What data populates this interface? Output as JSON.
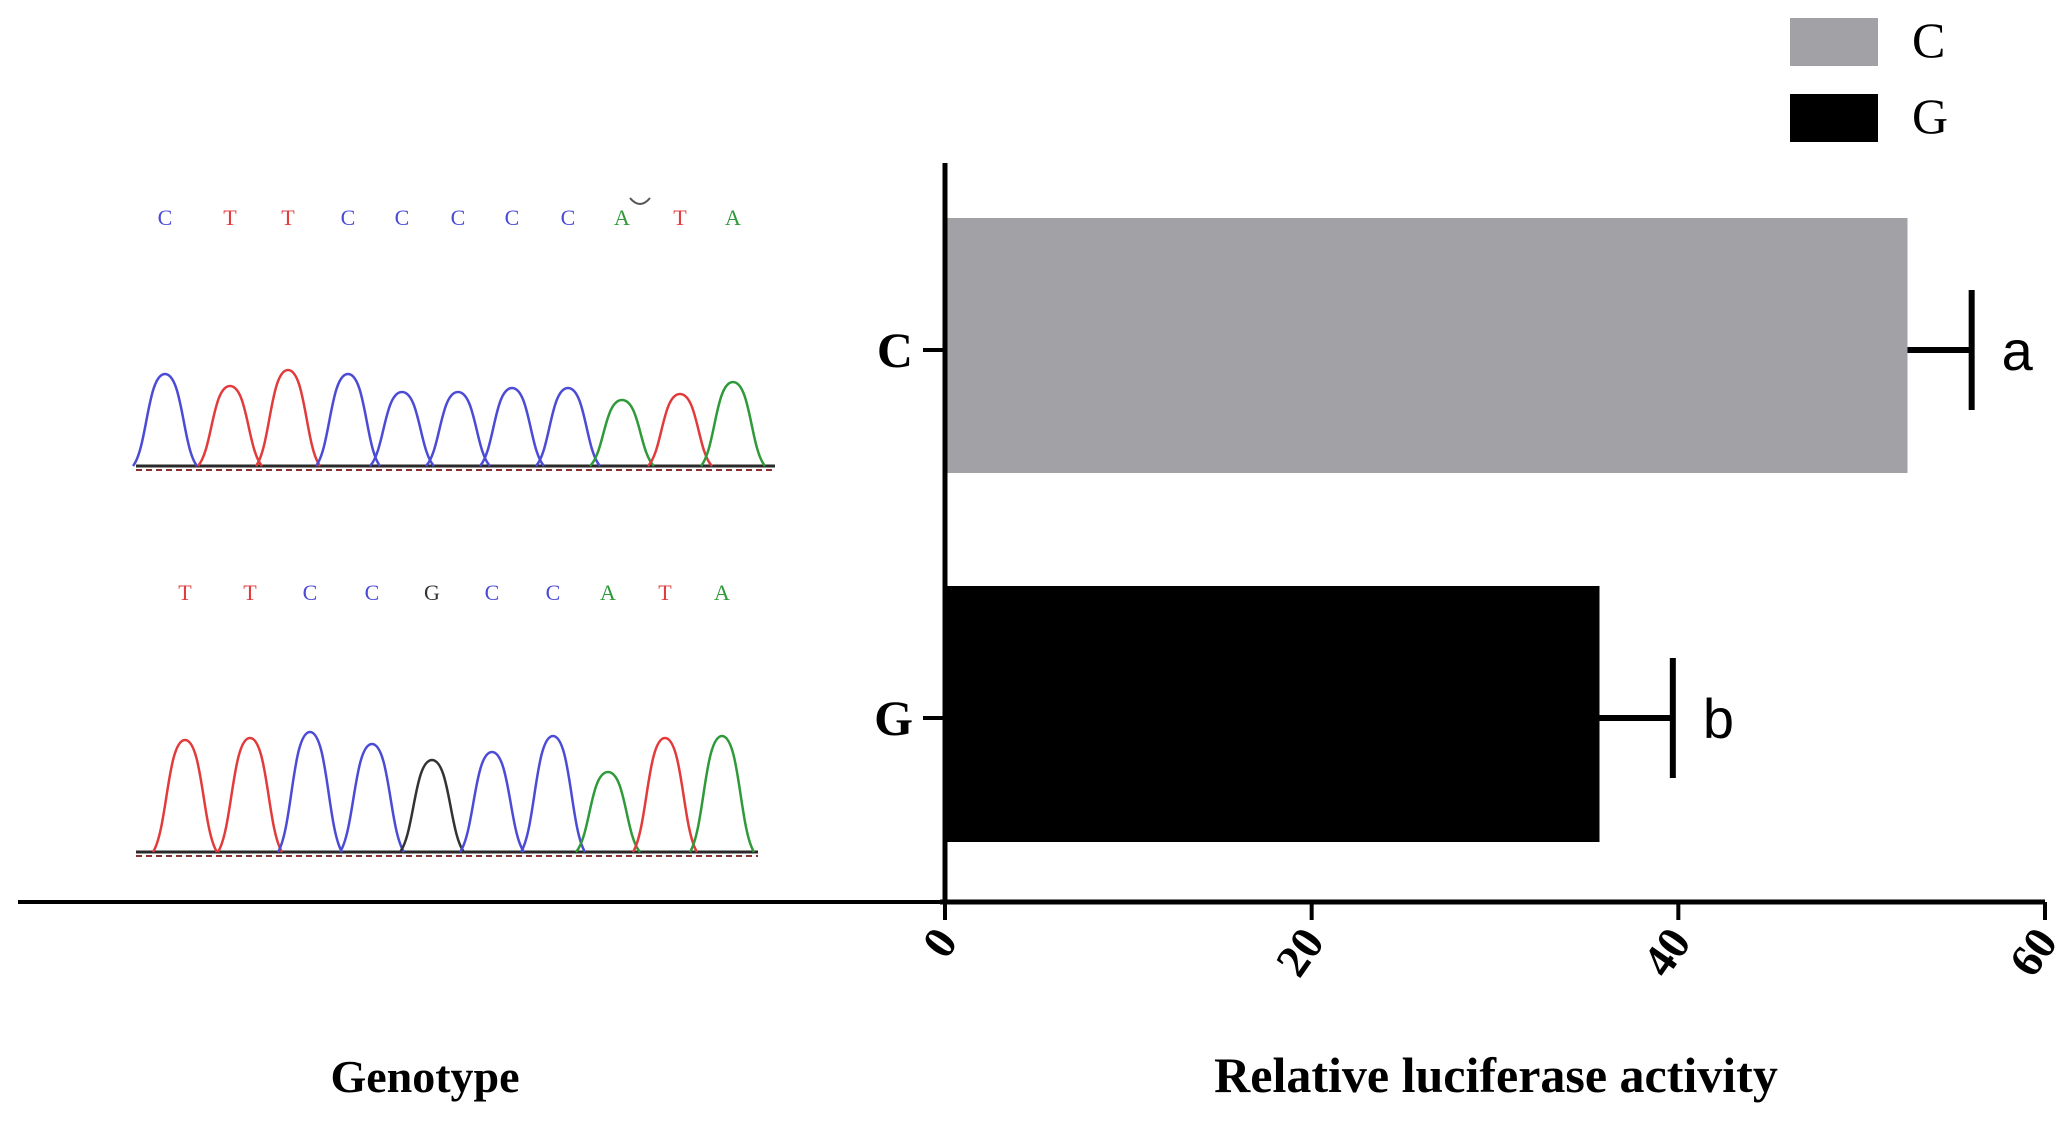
{
  "chart_data": {
    "type": "bar",
    "orientation": "horizontal",
    "categories": [
      "C",
      "G"
    ],
    "values": [
      52.5,
      35.7
    ],
    "errors": [
      3.5,
      4.0
    ],
    "significance_letters": [
      "a",
      "b"
    ],
    "series_colors": [
      "#a2a1a6",
      "#000000"
    ],
    "xlabel": "Relative luciferase activity",
    "xlim": [
      0,
      60
    ],
    "xticks": [
      0,
      20,
      40,
      60
    ],
    "legend": {
      "placement": "top-right",
      "entries": [
        {
          "label": "C",
          "color": "#a2a1a6"
        },
        {
          "label": "G",
          "color": "#000000"
        }
      ]
    }
  },
  "genotype_panel": {
    "label": "Genotype",
    "trace_c": {
      "bases": [
        "C",
        "T",
        "T",
        "C",
        "C",
        "C",
        "C",
        "C",
        "A",
        "T",
        "A"
      ]
    },
    "trace_g": {
      "bases": [
        "T",
        "T",
        "C",
        "C",
        "G",
        "C",
        "C",
        "A",
        "T",
        "A"
      ]
    },
    "base_colors": {
      "A": "#2f9a3a",
      "C": "#4b4bd6",
      "G": "#333333",
      "T": "#e23b3b"
    }
  }
}
